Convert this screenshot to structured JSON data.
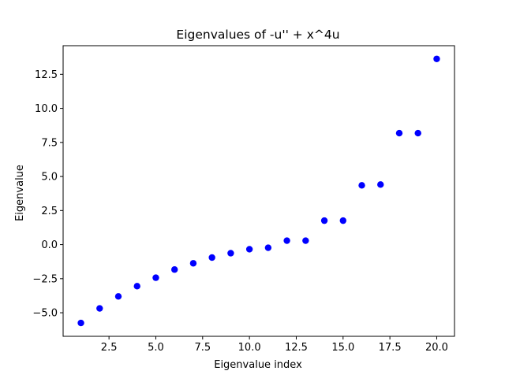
{
  "chart_data": {
    "type": "scatter",
    "title": "Eigenvalues of -u'' + x^4u",
    "xlabel": "Eigenvalue index",
    "ylabel": "Eigenvalue",
    "xlim": [
      0.05,
      20.95
    ],
    "ylim": [
      -6.73,
      14.6
    ],
    "xticks": [
      2.5,
      5.0,
      7.5,
      10.0,
      12.5,
      15.0,
      17.5,
      20.0
    ],
    "xtick_labels": [
      "2.5",
      "5.0",
      "7.5",
      "10.0",
      "12.5",
      "15.0",
      "17.5",
      "20.0"
    ],
    "yticks": [
      -5.0,
      -2.5,
      0.0,
      2.5,
      5.0,
      7.5,
      10.0,
      12.5
    ],
    "ytick_labels": [
      "−5.0",
      "−2.5",
      "0.0",
      "2.5",
      "5.0",
      "7.5",
      "10.0",
      "12.5"
    ],
    "grid": false,
    "marker_color": "#0000ff",
    "x": [
      1,
      2,
      3,
      4,
      5,
      6,
      7,
      8,
      9,
      10,
      11,
      12,
      13,
      14,
      15,
      16,
      17,
      18,
      19,
      20
    ],
    "y": [
      -5.75,
      -4.68,
      -3.8,
      -3.05,
      -2.43,
      -1.83,
      -1.37,
      -0.95,
      -0.63,
      -0.34,
      -0.23,
      0.29,
      0.29,
      1.76,
      1.76,
      4.35,
      4.41,
      8.18,
      8.18,
      13.63
    ]
  }
}
